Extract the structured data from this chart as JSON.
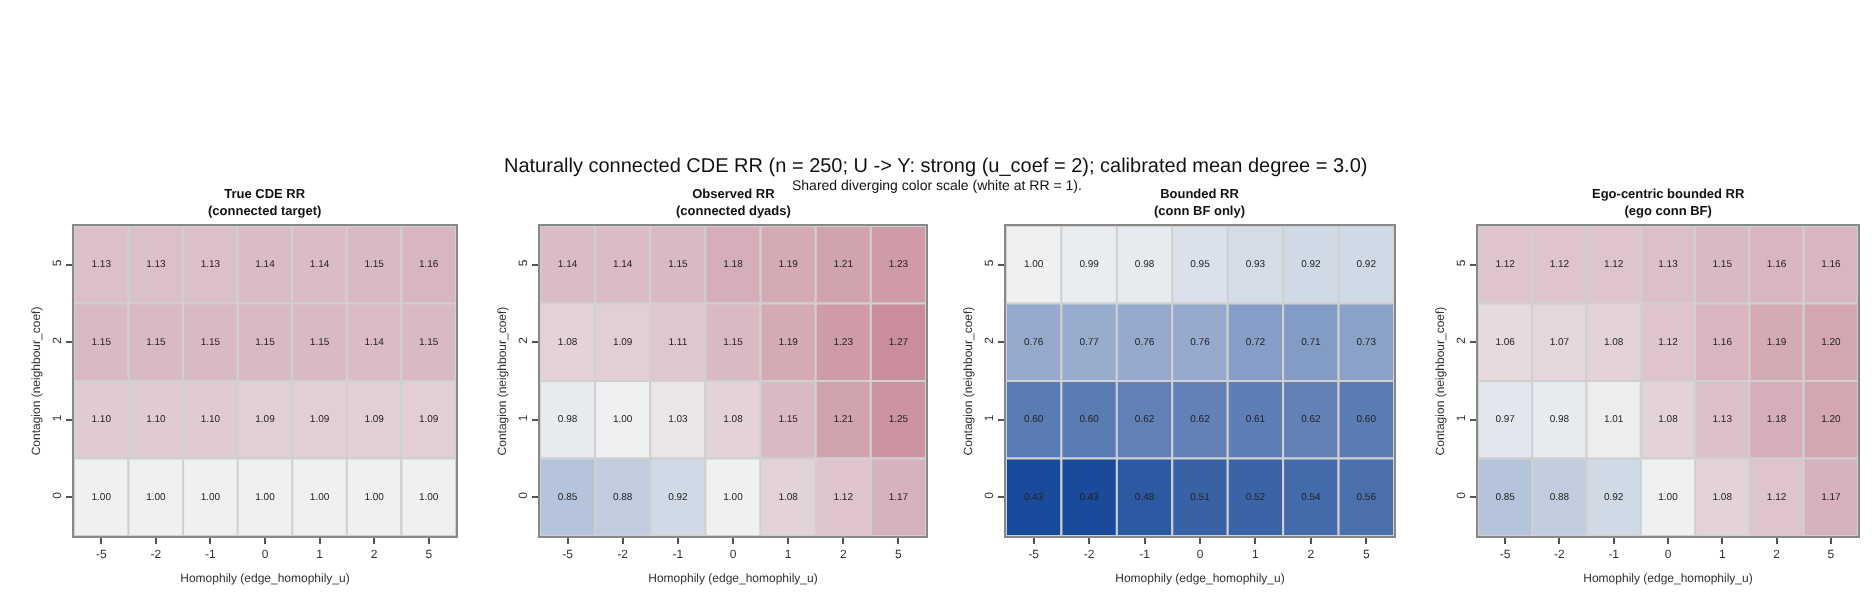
{
  "chart_data": [
    {
      "type": "heatmap",
      "title": "True CDE RR\n(connected target)",
      "xlabel": "Homophily (edge_homophily_u)",
      "ylabel": "Contagion (neighbour_coef)",
      "annotations": [
        "Naturally connected CDE RR (n = 250; U -> Y: strong (u_coef = 2); calibrated mean degree = 3.0)",
        "Shared diverging color scale (white at RR = 1)."
      ],
      "categories": [
        "-5",
        "-2",
        "-1",
        "0",
        "1",
        "2",
        "5"
      ],
      "y_categories": [
        "5",
        "2",
        "1",
        "0"
      ],
      "cells": [
        [
          1.13,
          1.13,
          1.13,
          1.14,
          1.14,
          1.15,
          1.16
        ],
        [
          1.15,
          1.15,
          1.15,
          1.15,
          1.15,
          1.14,
          1.15
        ],
        [
          1.1,
          1.1,
          1.1,
          1.09,
          1.09,
          1.09,
          1.09
        ],
        [
          1.0,
          1.0,
          1.0,
          1.0,
          1.0,
          1.0,
          1.0
        ]
      ],
      "cell_labels": [
        [
          "1.13",
          "1.13",
          "1.13",
          "1.14",
          "1.14",
          "1.15",
          "1.16"
        ],
        [
          "1.15",
          "1.15",
          "1.15",
          "1.15",
          "1.15",
          "1.14",
          "1.15"
        ],
        [
          "1.10",
          "1.10",
          "1.10",
          "1.09",
          "1.09",
          "1.09",
          "1.09"
        ],
        [
          "1.00",
          "1.00",
          "1.00",
          "1.00",
          "1.00",
          "1.00",
          "1.00"
        ]
      ]
    },
    {
      "type": "heatmap",
      "title": "Observed RR\n(connected dyads)",
      "xlabel": "Homophily (edge_homophily_u)",
      "ylabel": "Contagion (neighbour_coef)",
      "categories": [
        "-5",
        "-2",
        "-1",
        "0",
        "1",
        "2",
        "5"
      ],
      "y_categories": [
        "5",
        "2",
        "1",
        "0"
      ],
      "cells": [
        [
          1.14,
          1.14,
          1.15,
          1.18,
          1.19,
          1.21,
          1.23
        ],
        [
          1.08,
          1.09,
          1.11,
          1.15,
          1.19,
          1.23,
          1.27
        ],
        [
          0.98,
          1.0,
          1.03,
          1.08,
          1.15,
          1.21,
          1.25
        ],
        [
          0.85,
          0.88,
          0.92,
          1.0,
          1.08,
          1.12,
          1.17
        ]
      ],
      "cell_labels": [
        [
          "1.14",
          "1.14",
          "1.15",
          "1.18",
          "1.19",
          "1.21",
          "1.23"
        ],
        [
          "1.08",
          "1.09",
          "1.11",
          "1.15",
          "1.19",
          "1.23",
          "1.27"
        ],
        [
          "0.98",
          "1.00",
          "1.03",
          "1.08",
          "1.15",
          "1.21",
          "1.25"
        ],
        [
          "0.85",
          "0.88",
          "0.92",
          "1.00",
          "1.08",
          "1.12",
          "1.17"
        ]
      ]
    },
    {
      "type": "heatmap",
      "title": "Bounded RR\n(conn BF only)",
      "xlabel": "Homophily (edge_homophily_u)",
      "ylabel": "Contagion (neighbour_coef)",
      "categories": [
        "-5",
        "-2",
        "-1",
        "0",
        "1",
        "2",
        "5"
      ],
      "y_categories": [
        "5",
        "2",
        "1",
        "0"
      ],
      "cells": [
        [
          1.0,
          0.99,
          0.98,
          0.95,
          0.93,
          0.92,
          0.92
        ],
        [
          0.76,
          0.77,
          0.76,
          0.76,
          0.72,
          0.71,
          0.73
        ],
        [
          0.6,
          0.6,
          0.62,
          0.62,
          0.61,
          0.62,
          0.6
        ],
        [
          0.43,
          0.43,
          0.48,
          0.51,
          0.52,
          0.54,
          0.56
        ]
      ],
      "cell_labels": [
        [
          "1.00",
          "0.99",
          "0.98",
          "0.95",
          "0.93",
          "0.92",
          "0.92"
        ],
        [
          "0.76",
          "0.77",
          "0.76",
          "0.76",
          "0.72",
          "0.71",
          "0.73"
        ],
        [
          "0.60",
          "0.60",
          "0.62",
          "0.62",
          "0.61",
          "0.62",
          "0.60"
        ],
        [
          "0.43",
          "0.43",
          "0.48",
          "0.51",
          "0.52",
          "0.54",
          "0.56"
        ]
      ]
    },
    {
      "type": "heatmap",
      "title": "Ego-centric bounded RR\n(ego conn BF)",
      "xlabel": "Homophily (edge_homophily_u)",
      "ylabel": "Contagion (neighbour_coef)",
      "categories": [
        "-5",
        "-2",
        "-1",
        "0",
        "1",
        "2",
        "5"
      ],
      "y_categories": [
        "5",
        "2",
        "1",
        "0"
      ],
      "cells": [
        [
          1.12,
          1.12,
          1.12,
          1.13,
          1.15,
          1.16,
          1.16
        ],
        [
          1.06,
          1.07,
          1.08,
          1.12,
          1.16,
          1.19,
          1.2
        ],
        [
          0.97,
          0.98,
          1.01,
          1.08,
          1.13,
          1.18,
          1.2
        ],
        [
          0.85,
          0.88,
          0.92,
          1.0,
          1.08,
          1.12,
          1.17
        ]
      ],
      "cell_labels": [
        [
          "1.12",
          "1.12",
          "1.12",
          "1.13",
          "1.15",
          "1.16",
          "1.16"
        ],
        [
          "1.06",
          "1.07",
          "1.08",
          "1.12",
          "1.16",
          "1.19",
          "1.20"
        ],
        [
          "0.97",
          "0.98",
          "1.01",
          "1.08",
          "1.13",
          "1.18",
          "1.20"
        ],
        [
          "0.85",
          "0.88",
          "0.92",
          "1.00",
          "1.08",
          "1.12",
          "1.17"
        ]
      ]
    }
  ]
}
